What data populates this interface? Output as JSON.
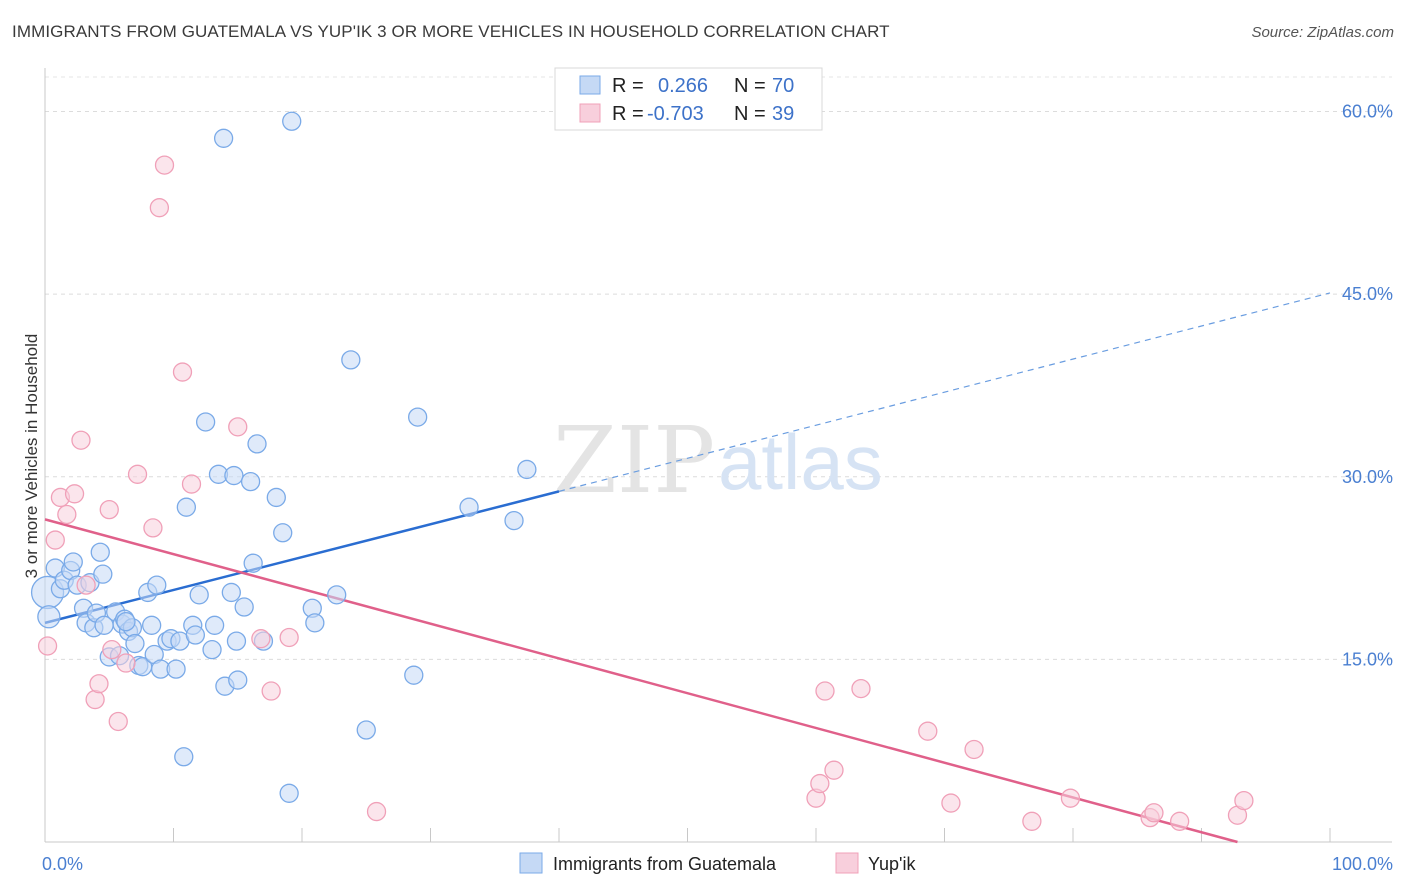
{
  "title": "IMMIGRANTS FROM GUATEMALA VS YUP'IK 3 OR MORE VEHICLES IN HOUSEHOLD CORRELATION CHART",
  "source": "Source: ZipAtlas.com",
  "watermark": {
    "part1": "ZIP",
    "part2": "atlas"
  },
  "legend": {
    "r_label": "R =",
    "n_label": "N =",
    "rows": [
      {
        "r": "0.266",
        "n": "70"
      },
      {
        "r": "-0.703",
        "n": "39"
      }
    ]
  },
  "chart_data": {
    "type": "scatter",
    "title": "IMMIGRANTS FROM GUATEMALA VS YUP'IK 3 OR MORE VEHICLES IN HOUSEHOLD CORRELATION CHART",
    "xlabel": "",
    "ylabel": "3 or more Vehicles in Household",
    "xlim": [
      0,
      100
    ],
    "ylim": [
      0,
      63
    ],
    "x_tick_labels": [
      "0.0%",
      "100.0%"
    ],
    "y_ticks": [
      15,
      30,
      45,
      60
    ],
    "y_tick_labels": [
      "15.0%",
      "30.0%",
      "45.0%",
      "60.0%"
    ],
    "grid": "horizontal dashed",
    "legend_position": "top-center",
    "series": [
      {
        "name": "Immigrants from Guatemala",
        "color": "#7aaae8",
        "fill": "#c5d9f5",
        "line_color": "#2a6dd1",
        "trend": {
          "x0": 0,
          "y0": 18.0,
          "x1": 40,
          "y1": 28.8,
          "dash_to_x": 100,
          "dash_to_y": 45.1
        },
        "points": [
          [
            0.2,
            20.5
          ],
          [
            0.3,
            18.5
          ],
          [
            0.8,
            22.5
          ],
          [
            1.2,
            20.8
          ],
          [
            1.5,
            21.5
          ],
          [
            2.0,
            22.3
          ],
          [
            2.5,
            21.1
          ],
          [
            3.0,
            19.2
          ],
          [
            3.2,
            18.0
          ],
          [
            3.5,
            21.3
          ],
          [
            3.8,
            17.6
          ],
          [
            4.0,
            18.8
          ],
          [
            4.3,
            23.8
          ],
          [
            4.6,
            17.8
          ],
          [
            5.0,
            15.2
          ],
          [
            5.5,
            18.9
          ],
          [
            5.8,
            15.3
          ],
          [
            6.0,
            17.9
          ],
          [
            6.2,
            18.3
          ],
          [
            6.5,
            17.3
          ],
          [
            6.8,
            17.6
          ],
          [
            7.0,
            16.3
          ],
          [
            7.3,
            14.5
          ],
          [
            7.6,
            14.4
          ],
          [
            8.0,
            20.5
          ],
          [
            8.3,
            17.8
          ],
          [
            8.5,
            15.4
          ],
          [
            8.7,
            21.1
          ],
          [
            9.0,
            14.2
          ],
          [
            9.5,
            16.5
          ],
          [
            9.8,
            16.7
          ],
          [
            10.2,
            14.2
          ],
          [
            10.5,
            16.5
          ],
          [
            11.0,
            27.5
          ],
          [
            11.5,
            17.8
          ],
          [
            11.7,
            17.0
          ],
          [
            12.0,
            20.3
          ],
          [
            12.5,
            34.5
          ],
          [
            13.0,
            15.8
          ],
          [
            13.2,
            17.8
          ],
          [
            13.5,
            30.2
          ],
          [
            14.0,
            12.8
          ],
          [
            14.5,
            20.5
          ],
          [
            14.7,
            30.1
          ],
          [
            14.9,
            16.5
          ],
          [
            15.0,
            13.3
          ],
          [
            15.5,
            19.3
          ],
          [
            16.0,
            29.6
          ],
          [
            16.2,
            22.9
          ],
          [
            16.5,
            32.7
          ],
          [
            17.0,
            16.5
          ],
          [
            18.0,
            28.3
          ],
          [
            18.5,
            25.4
          ],
          [
            19.2,
            59.2
          ],
          [
            20.8,
            19.2
          ],
          [
            21.0,
            18.0
          ],
          [
            22.7,
            20.3
          ],
          [
            23.8,
            39.6
          ],
          [
            25.0,
            9.2
          ],
          [
            28.7,
            13.7
          ],
          [
            29.0,
            34.9
          ],
          [
            33.0,
            27.5
          ],
          [
            36.5,
            26.4
          ],
          [
            37.5,
            30.6
          ],
          [
            13.9,
            57.8
          ],
          [
            10.8,
            7.0
          ],
          [
            19.0,
            4.0
          ],
          [
            4.5,
            22.0
          ],
          [
            2.2,
            23.0
          ],
          [
            6.3,
            18.1
          ]
        ],
        "point_radius": [
          16,
          11,
          9,
          9,
          9,
          9,
          9,
          9,
          9,
          9,
          9,
          9,
          9,
          9,
          9,
          9,
          9,
          9,
          9,
          9,
          9,
          9,
          9,
          9,
          9,
          9,
          9,
          9,
          9,
          9,
          9,
          9,
          9,
          9,
          9,
          9,
          9,
          9,
          9,
          9,
          9,
          9,
          9,
          9,
          9,
          9,
          9,
          9,
          9,
          9,
          9,
          9,
          9,
          9,
          9,
          9,
          9,
          9,
          9,
          9,
          9,
          9,
          9,
          9,
          9,
          9,
          9,
          9,
          9,
          9
        ]
      },
      {
        "name": "Yup'ik",
        "color": "#f0a0b8",
        "fill": "#f8cfdc",
        "line_color": "#e0608a",
        "trend": {
          "x0": 0,
          "y0": 26.5,
          "x1": 92.8,
          "y1": 0
        },
        "points": [
          [
            0.2,
            16.1
          ],
          [
            0.8,
            24.8
          ],
          [
            1.2,
            28.3
          ],
          [
            1.7,
            26.9
          ],
          [
            2.3,
            28.6
          ],
          [
            2.8,
            33.0
          ],
          [
            3.2,
            21.1
          ],
          [
            3.9,
            11.7
          ],
          [
            4.2,
            13.0
          ],
          [
            5.0,
            27.3
          ],
          [
            5.2,
            15.8
          ],
          [
            5.7,
            9.9
          ],
          [
            6.3,
            14.7
          ],
          [
            7.2,
            30.2
          ],
          [
            8.4,
            25.8
          ],
          [
            8.9,
            52.1
          ],
          [
            9.3,
            55.6
          ],
          [
            10.7,
            38.6
          ],
          [
            11.4,
            29.4
          ],
          [
            15.0,
            34.1
          ],
          [
            16.8,
            16.7
          ],
          [
            17.6,
            12.4
          ],
          [
            19.0,
            16.8
          ],
          [
            25.8,
            2.5
          ],
          [
            60.0,
            3.6
          ],
          [
            60.3,
            4.8
          ],
          [
            60.7,
            12.4
          ],
          [
            61.4,
            5.9
          ],
          [
            63.5,
            12.6
          ],
          [
            68.7,
            9.1
          ],
          [
            70.5,
            3.2
          ],
          [
            72.3,
            7.6
          ],
          [
            76.8,
            1.7
          ],
          [
            79.8,
            3.6
          ],
          [
            86.0,
            2.0
          ],
          [
            86.3,
            2.4
          ],
          [
            88.3,
            1.7
          ],
          [
            92.8,
            2.2
          ],
          [
            93.3,
            3.4
          ]
        ],
        "point_radius": 9
      }
    ]
  }
}
